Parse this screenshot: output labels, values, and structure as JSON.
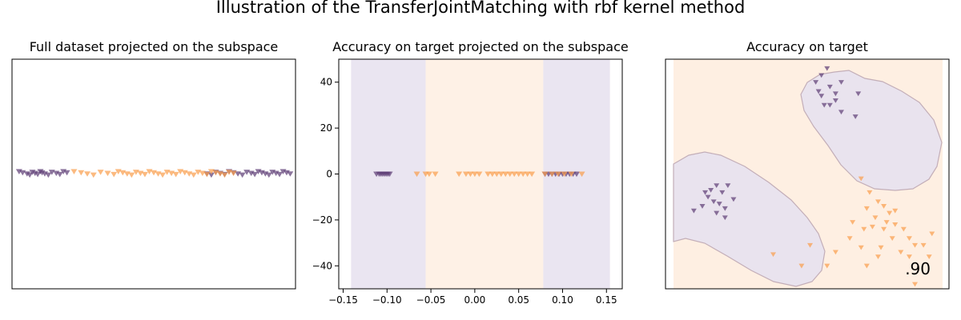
{
  "figure": {
    "suptitle": "Illustration of the TransferJointMatching with rbf kernel method"
  },
  "colors": {
    "purple": "#5b3a73",
    "orange": "#f99d4a",
    "region_purple": "#e6e0ee",
    "region_orange": "#feefe2",
    "contour": "#bfa8b4"
  },
  "chart_data": [
    {
      "type": "scatter",
      "title": "Full dataset projected on the subspace",
      "axes_visible": false,
      "xlim": [
        -0.16,
        0.16
      ],
      "ylim": [
        -50,
        50
      ],
      "marker": "triangle-down",
      "series": [
        {
          "color": "purple",
          "x": [
            -0.152,
            -0.148,
            -0.143,
            -0.14,
            -0.137,
            -0.134,
            -0.131,
            -0.128,
            -0.126,
            -0.123,
            -0.119,
            -0.115,
            -0.11,
            -0.106,
            -0.102,
            -0.098,
            0.06,
            0.065,
            0.07,
            0.075,
            0.08,
            0.085,
            0.09,
            0.095,
            0.1,
            0.105,
            0.11,
            0.114,
            0.118,
            0.122,
            0.126,
            0.13,
            0.134,
            0.138,
            0.142,
            0.146,
            0.15,
            0.154
          ]
        },
        {
          "color": "orange",
          "x": [
            -0.09,
            -0.082,
            -0.075,
            -0.068,
            -0.06,
            -0.052,
            -0.045,
            -0.04,
            -0.035,
            -0.03,
            -0.025,
            -0.02,
            -0.015,
            -0.01,
            -0.005,
            0.0,
            0.005,
            0.01,
            0.015,
            0.02,
            0.025,
            0.03,
            0.035,
            0.04,
            0.045,
            0.05,
            0.055,
            0.06,
            0.065,
            0.07,
            0.075,
            0.08,
            0.085,
            0.09
          ]
        }
      ]
    },
    {
      "type": "scatter",
      "title": "Accuracy on target projected on the subspace",
      "xlim": [
        -0.155,
        0.168
      ],
      "ylim": [
        -50,
        50
      ],
      "xticks": [
        -0.15,
        -0.1,
        -0.05,
        0.0,
        0.05,
        0.1,
        0.15
      ],
      "xticklabels": [
        "−0.15",
        "−0.10",
        "−0.05",
        "0.00",
        "0.05",
        "0.10",
        "0.15"
      ],
      "yticks": [
        40,
        20,
        0,
        -20,
        -40
      ],
      "yticklabels": [
        "40",
        "20",
        "0",
        "−20",
        "−40"
      ],
      "regions": [
        {
          "from": -0.141,
          "to": -0.056,
          "class": "purple"
        },
        {
          "from": -0.056,
          "to": 0.078,
          "class": "orange"
        },
        {
          "from": 0.078,
          "to": 0.154,
          "class": "purple"
        }
      ],
      "series": [
        {
          "color": "purple",
          "x": [
            -0.112,
            -0.109,
            -0.107,
            -0.105,
            -0.103,
            -0.101,
            -0.099,
            -0.097,
            0.08,
            0.084,
            0.088,
            0.092,
            0.096,
            0.1,
            0.104,
            0.108,
            0.112,
            0.116
          ]
        },
        {
          "color": "orange",
          "x": [
            -0.066,
            -0.056,
            -0.052,
            -0.045,
            -0.018,
            -0.01,
            -0.005,
            0.0,
            0.005,
            0.015,
            0.02,
            0.025,
            0.03,
            0.035,
            0.04,
            0.045,
            0.05,
            0.055,
            0.06,
            0.065,
            0.08,
            0.088,
            0.095,
            0.102,
            0.11,
            0.122
          ]
        }
      ]
    },
    {
      "type": "scatter",
      "title": "Accuracy on target",
      "axes_visible": false,
      "annotation": ".90",
      "xlim": [
        0,
        1
      ],
      "ylim": [
        0,
        1
      ],
      "series": [
        {
          "color": "purple",
          "points": [
            [
              0.55,
              0.93
            ],
            [
              0.57,
              0.96
            ],
            [
              0.53,
              0.9
            ],
            [
              0.58,
              0.88
            ],
            [
              0.6,
              0.82
            ],
            [
              0.55,
              0.84
            ],
            [
              0.58,
              0.8
            ],
            [
              0.62,
              0.77
            ],
            [
              0.54,
              0.86
            ],
            [
              0.68,
              0.85
            ],
            [
              0.67,
              0.75
            ],
            [
              0.62,
              0.9
            ],
            [
              0.56,
              0.8
            ],
            [
              0.6,
              0.85
            ],
            [
              0.16,
              0.43
            ],
            [
              0.17,
              0.38
            ],
            [
              0.15,
              0.4
            ],
            [
              0.18,
              0.45
            ],
            [
              0.2,
              0.42
            ],
            [
              0.19,
              0.37
            ],
            [
              0.21,
              0.35
            ],
            [
              0.13,
              0.36
            ],
            [
              0.21,
              0.31
            ],
            [
              0.22,
              0.45
            ],
            [
              0.24,
              0.39
            ],
            [
              0.18,
              0.33
            ],
            [
              0.1,
              0.34
            ],
            [
              0.14,
              0.42
            ]
          ]
        },
        {
          "color": "orange",
          "points": [
            [
              0.69,
              0.48
            ],
            [
              0.72,
              0.42
            ],
            [
              0.75,
              0.38
            ],
            [
              0.77,
              0.36
            ],
            [
              0.71,
              0.35
            ],
            [
              0.79,
              0.33
            ],
            [
              0.81,
              0.34
            ],
            [
              0.74,
              0.31
            ],
            [
              0.78,
              0.29
            ],
            [
              0.73,
              0.27
            ],
            [
              0.66,
              0.29
            ],
            [
              0.65,
              0.22
            ],
            [
              0.69,
              0.18
            ],
            [
              0.76,
              0.18
            ],
            [
              0.8,
              0.22
            ],
            [
              0.86,
              0.22
            ],
            [
              0.88,
              0.19
            ],
            [
              0.84,
              0.26
            ],
            [
              0.91,
              0.19
            ],
            [
              0.93,
              0.14
            ],
            [
              0.86,
              0.14
            ],
            [
              0.83,
              0.16
            ],
            [
              0.71,
              0.1
            ],
            [
              0.75,
              0.14
            ],
            [
              0.6,
              0.16
            ],
            [
              0.57,
              0.1
            ],
            [
              0.51,
              0.19
            ],
            [
              0.38,
              0.15
            ],
            [
              0.48,
              0.1
            ],
            [
              0.88,
              0.02
            ],
            [
              0.94,
              0.24
            ],
            [
              0.81,
              0.28
            ],
            [
              0.77,
              0.26
            ],
            [
              0.7,
              0.26
            ]
          ]
        }
      ]
    }
  ]
}
